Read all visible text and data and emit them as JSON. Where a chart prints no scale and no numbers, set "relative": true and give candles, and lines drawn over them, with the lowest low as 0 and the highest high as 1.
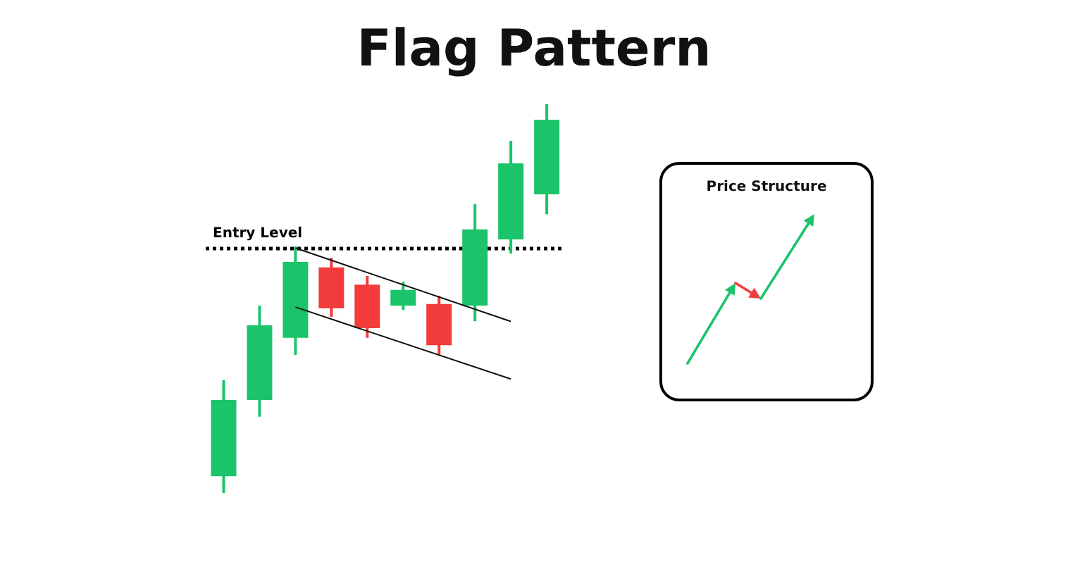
{
  "chart_data": [
    {
      "type": "candlestick",
      "title": "Flag Pattern",
      "relative": true,
      "tick_labels": false,
      "categories": [
        null,
        null,
        null,
        null,
        null,
        null,
        null,
        null,
        null,
        null
      ],
      "ohlc": [
        [
          0.043,
          0.29,
          0,
          0.239
        ],
        [
          0.239,
          0.482,
          0.196,
          0.431
        ],
        [
          0.399,
          0.634,
          0.355,
          0.594
        ],
        [
          0.58,
          0.605,
          0.453,
          0.475
        ],
        [
          0.536,
          0.558,
          0.399,
          0.424
        ],
        [
          0.482,
          0.543,
          0.471,
          0.522
        ],
        [
          0.486,
          0.507,
          0.355,
          0.38
        ],
        [
          0.482,
          0.743,
          0.442,
          0.678
        ],
        [
          0.652,
          0.906,
          0.616,
          0.848
        ],
        [
          0.768,
          1,
          0.717,
          0.96
        ]
      ],
      "colors": [
        "#1bc46a",
        "#1bc46a",
        "#1bc46a",
        "#f23b3b",
        "#f23b3b",
        "#1bc46a",
        "#f23b3b",
        "#1bc46a",
        "#1bc46a",
        "#1bc46a"
      ],
      "series": [
        {
          "type": "line",
          "values": [
            null,
            null,
            0.63,
            null,
            null,
            null,
            null,
            null,
            0.441,
            null
          ],
          "color": "#111111",
          "line_style": "solid"
        },
        {
          "type": "line",
          "values": [
            null,
            null,
            0.478,
            null,
            null,
            null,
            null,
            null,
            0.293,
            null
          ],
          "color": "#111111",
          "line_style": "solid"
        }
      ],
      "ref_lines": [
        {
          "axis": "y",
          "value": 0.63,
          "label": "Entry Level",
          "color": "#000000",
          "line_style": "dotted"
        }
      ]
    },
    {
      "type": "other",
      "title": "Price Structure"
    }
  ]
}
